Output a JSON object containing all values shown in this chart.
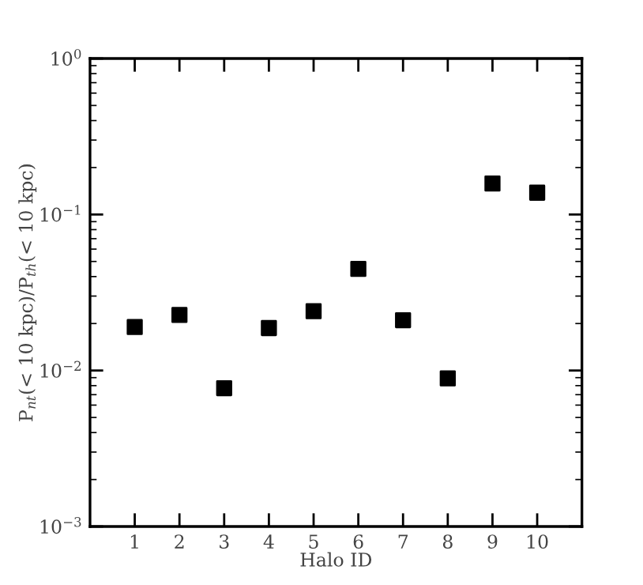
{
  "chart_data": {
    "type": "scatter",
    "xlabel": "Halo ID",
    "ylabel": "P$_{nt}$(< 10 kpc)/P$_{th}$(< 10 kpc)",
    "x": [
      1,
      2,
      3,
      4,
      5,
      6,
      7,
      8,
      9,
      10
    ],
    "series": [
      {
        "color": "#000000",
        "values": [
          0.019,
          0.0227,
          0.0077,
          0.0187,
          0.024,
          0.0448,
          0.021,
          0.0089,
          0.158,
          0.138
        ]
      }
    ],
    "marker": "square",
    "log": "y",
    "grid": false,
    "legend": false,
    "xlim": [
      0,
      11
    ],
    "xticks": [
      1,
      2,
      3,
      4,
      5,
      6,
      7,
      8,
      9,
      10
    ],
    "ylim": [
      0.001,
      1
    ],
    "yticks": [
      {
        "value": 0.001,
        "label": "10$^{−3}$"
      },
      {
        "value": 0.01,
        "label": "10$^{−2}$"
      },
      {
        "value": 0.1,
        "label": "10$^{−1}$"
      },
      {
        "value": 1,
        "label": "10$^{0}$"
      }
    ]
  }
}
